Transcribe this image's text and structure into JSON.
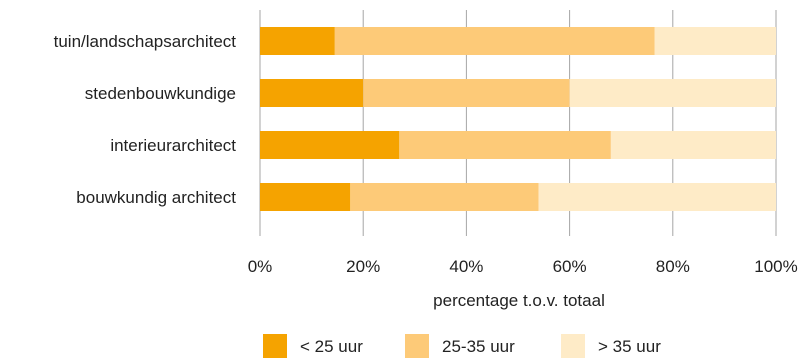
{
  "chart_data": {
    "type": "bar",
    "orientation": "horizontal",
    "stacked": true,
    "categories": [
      "tuin/landschapsarchitect",
      "stedenbouwkundige",
      "interieurarchitect",
      "bouwkundig architect"
    ],
    "series": [
      {
        "name": "< 25 uur",
        "values": [
          14.5,
          20.0,
          27.0,
          17.5
        ],
        "color": "#f5a300"
      },
      {
        "name": "25-35 uur",
        "values": [
          62.0,
          40.0,
          41.0,
          36.5
        ],
        "color": "#fdca78"
      },
      {
        "name": "> 35 uur",
        "values": [
          23.5,
          40.0,
          32.0,
          46.0
        ],
        "color": "#feebc7"
      }
    ],
    "xlabel": "percentage t.o.v. totaal",
    "xlim": [
      0,
      100
    ],
    "xticks": [
      0,
      20,
      40,
      60,
      80,
      100
    ],
    "xtick_labels": [
      "0%",
      "20%",
      "40%",
      "60%",
      "80%",
      "100%"
    ],
    "grid": "vertical",
    "legend_position": "bottom"
  }
}
